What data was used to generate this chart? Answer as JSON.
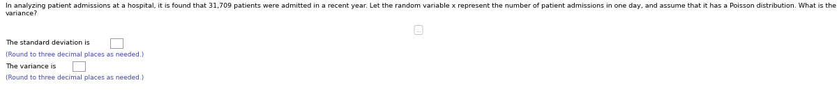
{
  "background_color": "#ffffff",
  "main_text_line1": "In analyzing patient admissions at a hospital, it is found that 31,709 patients were admitted in a recent year. Let the random variable x represent the number of patient admissions in one day, and assume that it has a Poisson distribution. What is the standard deviation for the values of the random variable x? What is the",
  "main_text_line2": "variance?",
  "divider_label": "...",
  "line1_label": "The standard deviation is",
  "line1_note": "(Round to three decimal places as needed.)",
  "line2_label": "The variance is",
  "line2_note": "(Round to three decimal places as needed.)",
  "main_fontsize": 6.8,
  "sub_fontsize": 6.8,
  "note_fontsize": 6.5,
  "text_color": "#000000",
  "blue_color": "#4444bb",
  "divider_color": "#aaaaaa",
  "box_edge_color": "#999999"
}
